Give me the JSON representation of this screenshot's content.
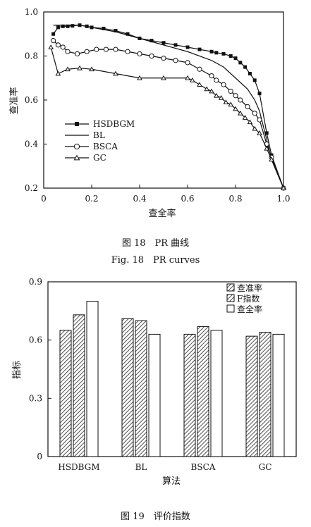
{
  "figure1": {
    "caption_cn": "图 18　PR 曲线",
    "caption_en": "Fig. 18　PR curves",
    "chart_data": {
      "type": "line",
      "xlabel": "查全率",
      "ylabel": "查准率",
      "xlim": [
        0,
        1.0
      ],
      "ylim": [
        0.2,
        1.0
      ],
      "xticks": [
        "0",
        "0.2",
        "0.4",
        "0.6",
        "0.8",
        "1.0"
      ],
      "yticks": [
        "0.2",
        "0.4",
        "0.6",
        "0.8",
        "1.0"
      ],
      "legend_position": "lower-left",
      "series": [
        {
          "name": "HSDBGM",
          "marker": "square",
          "x": [
            0.04,
            0.06,
            0.08,
            0.1,
            0.12,
            0.15,
            0.18,
            0.2,
            0.25,
            0.3,
            0.35,
            0.4,
            0.45,
            0.5,
            0.55,
            0.6,
            0.65,
            0.7,
            0.72,
            0.75,
            0.78,
            0.8,
            0.82,
            0.84,
            0.86,
            0.88,
            0.9,
            0.93,
            0.95,
            1.0
          ],
          "y": [
            0.9,
            0.93,
            0.935,
            0.935,
            0.937,
            0.94,
            0.935,
            0.93,
            0.925,
            0.915,
            0.9,
            0.88,
            0.87,
            0.86,
            0.85,
            0.84,
            0.83,
            0.82,
            0.815,
            0.81,
            0.8,
            0.79,
            0.77,
            0.75,
            0.72,
            0.69,
            0.63,
            0.45,
            0.35,
            0.2
          ]
        },
        {
          "name": "BL",
          "marker": "none",
          "x": [
            0.04,
            0.06,
            0.1,
            0.15,
            0.2,
            0.3,
            0.4,
            0.5,
            0.6,
            0.7,
            0.75,
            0.8,
            0.85,
            0.88,
            0.9,
            0.93,
            0.95,
            1.0
          ],
          "y": [
            0.94,
            0.94,
            0.94,
            0.94,
            0.93,
            0.91,
            0.88,
            0.85,
            0.82,
            0.78,
            0.75,
            0.7,
            0.65,
            0.6,
            0.55,
            0.42,
            0.33,
            0.2
          ]
        },
        {
          "name": "BSCA",
          "marker": "circle",
          "x": [
            0.04,
            0.06,
            0.08,
            0.1,
            0.14,
            0.18,
            0.22,
            0.26,
            0.3,
            0.35,
            0.4,
            0.45,
            0.5,
            0.55,
            0.6,
            0.65,
            0.7,
            0.72,
            0.75,
            0.78,
            0.8,
            0.82,
            0.85,
            0.88,
            0.9,
            0.93,
            0.95,
            1.0
          ],
          "y": [
            0.87,
            0.85,
            0.84,
            0.82,
            0.81,
            0.82,
            0.83,
            0.83,
            0.83,
            0.82,
            0.81,
            0.8,
            0.79,
            0.78,
            0.77,
            0.74,
            0.71,
            0.69,
            0.67,
            0.64,
            0.62,
            0.6,
            0.57,
            0.54,
            0.51,
            0.4,
            0.34,
            0.2
          ]
        },
        {
          "name": "GC",
          "marker": "triangle",
          "x": [
            0.03,
            0.06,
            0.1,
            0.15,
            0.2,
            0.3,
            0.4,
            0.5,
            0.6,
            0.62,
            0.65,
            0.68,
            0.7,
            0.72,
            0.74,
            0.76,
            0.78,
            0.8,
            0.82,
            0.84,
            0.86,
            0.88,
            0.9,
            0.93,
            0.95,
            1.0
          ],
          "y": [
            0.84,
            0.72,
            0.74,
            0.745,
            0.74,
            0.72,
            0.7,
            0.7,
            0.7,
            0.69,
            0.67,
            0.65,
            0.64,
            0.62,
            0.61,
            0.59,
            0.58,
            0.56,
            0.54,
            0.52,
            0.5,
            0.47,
            0.45,
            0.38,
            0.33,
            0.2
          ]
        }
      ]
    }
  },
  "figure2": {
    "caption_cn": "图 19　评价指数",
    "chart_data": {
      "type": "bar",
      "xlabel": "算法",
      "ylabel": "指标",
      "ylim": [
        0,
        0.9
      ],
      "yticks": [
        "0",
        "0.3",
        "0.6",
        "0.9"
      ],
      "categories": [
        "HSDBGM",
        "BL",
        "BSCA",
        "GC"
      ],
      "legend_position": "top-right",
      "series": [
        {
          "name": "查准率",
          "pattern": "hatch",
          "values": [
            0.65,
            0.71,
            0.63,
            0.62
          ]
        },
        {
          "name": "F指数",
          "pattern": "hatch",
          "values": [
            0.73,
            0.7,
            0.67,
            0.64
          ]
        },
        {
          "name": "查全率",
          "pattern": "empty",
          "values": [
            0.8,
            0.63,
            0.65,
            0.63
          ]
        }
      ]
    }
  }
}
